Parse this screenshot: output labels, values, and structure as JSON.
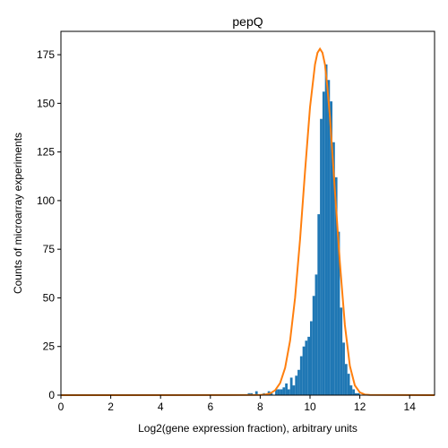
{
  "chart_data": {
    "type": "bar",
    "title": "pepQ",
    "xlabel": "Log2(gene expression fraction), arbitrary units",
    "ylabel": "Counts of microarray experiments",
    "xlim": [
      0,
      15
    ],
    "ylim": [
      0,
      187
    ],
    "xticks": [
      0,
      2,
      4,
      6,
      8,
      10,
      12,
      14
    ],
    "yticks": [
      0,
      25,
      50,
      75,
      100,
      125,
      150,
      175
    ],
    "grid": false,
    "legend": "none",
    "histogram": {
      "bin_width": 0.1,
      "color": "#1f77b4",
      "bins": [
        [
          7.5,
          1
        ],
        [
          7.6,
          1
        ],
        [
          7.8,
          2
        ],
        [
          8.1,
          1
        ],
        [
          8.3,
          2
        ],
        [
          8.4,
          1
        ],
        [
          8.6,
          3
        ],
        [
          8.7,
          3
        ],
        [
          8.8,
          3
        ],
        [
          8.9,
          4
        ],
        [
          9.0,
          6
        ],
        [
          9.1,
          3
        ],
        [
          9.2,
          9
        ],
        [
          9.3,
          5
        ],
        [
          9.4,
          10
        ],
        [
          9.5,
          13
        ],
        [
          9.6,
          20
        ],
        [
          9.7,
          25
        ],
        [
          9.8,
          28
        ],
        [
          9.9,
          30
        ],
        [
          10.0,
          38
        ],
        [
          10.1,
          51
        ],
        [
          10.2,
          62
        ],
        [
          10.3,
          93
        ],
        [
          10.4,
          142
        ],
        [
          10.5,
          156
        ],
        [
          10.6,
          170
        ],
        [
          10.7,
          162
        ],
        [
          10.8,
          151
        ],
        [
          10.9,
          130
        ],
        [
          11.0,
          112
        ],
        [
          11.1,
          84
        ],
        [
          11.2,
          45
        ],
        [
          11.3,
          27
        ],
        [
          11.4,
          16
        ],
        [
          11.5,
          11
        ],
        [
          11.6,
          5
        ],
        [
          11.7,
          3
        ],
        [
          11.8,
          1
        ],
        [
          11.9,
          1
        ]
      ]
    },
    "fit_curve": {
      "color": "#ff7f0e",
      "x": [
        0,
        8.0,
        8.2,
        8.4,
        8.6,
        8.8,
        9.0,
        9.2,
        9.4,
        9.6,
        9.8,
        10.0,
        10.2,
        10.3,
        10.4,
        10.5,
        10.6,
        10.7,
        10.8,
        11.0,
        11.2,
        11.4,
        11.6,
        11.8,
        12.0,
        12.2,
        12.4,
        15
      ],
      "y": [
        0,
        0.1,
        0.3,
        0.9,
        2.5,
        6.2,
        14,
        28,
        50,
        80,
        115,
        148,
        170,
        176,
        178,
        176,
        170,
        158,
        143,
        105,
        68,
        36,
        15,
        5,
        1.4,
        0.3,
        0.1,
        0
      ]
    }
  }
}
